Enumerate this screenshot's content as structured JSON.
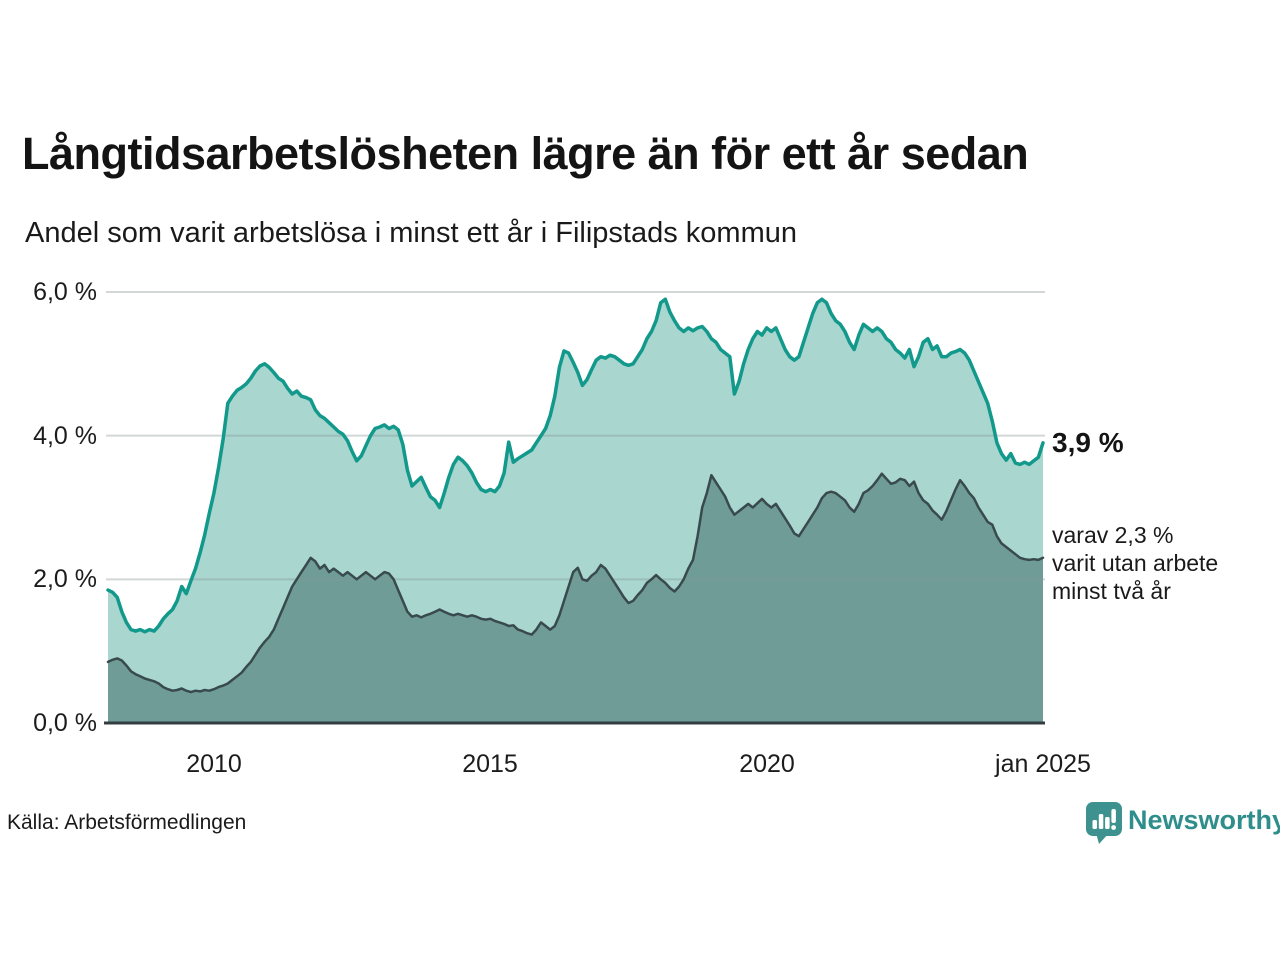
{
  "header": {
    "title": "Långtidsarbetslösheten lägre än för ett år sedan",
    "subtitle": "Andel som varit arbetslösa i minst ett år i Filipstads kommun"
  },
  "annotations": {
    "latest_total": "3,9 %",
    "secondary_line1": "varav 2,3 %",
    "secondary_line2": "varit utan arbete",
    "secondary_line3": "minst två år"
  },
  "footer": {
    "source": "Källa: Arbetsförmedlingen",
    "brand": "Newsworthy"
  },
  "colors": {
    "background": "#ffffff",
    "accent_teal": "#12998b",
    "area_light_fill": "#a9d6cf",
    "secondary_line": "#394a4e",
    "area_dark_fill": "#6f9c97",
    "gridline": "#8a9898",
    "baseline": "#333d40",
    "text": "#141414",
    "brand_teal": "#2f8e8c"
  },
  "chart_data": {
    "type": "area",
    "title": "Långtidsarbetslösheten lägre än för ett år sedan",
    "subtitle": "Andel som varit arbetslösa i minst ett år i Filipstads kommun",
    "source": "Arbetsförmedlingen",
    "x_start": "2008-02",
    "x_end": "2025-01",
    "x_frequency": "monthly",
    "x_tick_labels": [
      "2010",
      "2015",
      "2020",
      "jan 2025"
    ],
    "x_tick_indices": [
      23,
      83,
      143,
      203
    ],
    "y_tick_labels": [
      "0,0 %",
      "2,0 %",
      "4,0 %",
      "6,0 %"
    ],
    "ylim": [
      0,
      6
    ],
    "grid": "horizontal",
    "legend": "none",
    "latest_values": {
      "total": 3.9,
      "two_years_plus": 2.3
    },
    "series": [
      {
        "name": "Arbetslösa minst ett år",
        "color": "#12998b",
        "fill": "#a9d6cf",
        "stroke_width": 3.5,
        "values": [
          1.85,
          1.82,
          1.75,
          1.55,
          1.4,
          1.3,
          1.28,
          1.3,
          1.27,
          1.3,
          1.28,
          1.35,
          1.45,
          1.52,
          1.58,
          1.7,
          1.9,
          1.8,
          1.98,
          2.15,
          2.37,
          2.62,
          2.92,
          3.2,
          3.55,
          3.95,
          4.45,
          4.55,
          4.63,
          4.67,
          4.72,
          4.8,
          4.9,
          4.97,
          5.0,
          4.95,
          4.88,
          4.8,
          4.76,
          4.66,
          4.58,
          4.62,
          4.55,
          4.53,
          4.5,
          4.36,
          4.28,
          4.24,
          4.18,
          4.12,
          4.06,
          4.02,
          3.93,
          3.78,
          3.65,
          3.72,
          3.86,
          4.0,
          4.1,
          4.12,
          4.15,
          4.1,
          4.13,
          4.08,
          3.88,
          3.52,
          3.3,
          3.36,
          3.42,
          3.28,
          3.15,
          3.1,
          3.0,
          3.2,
          3.42,
          3.6,
          3.7,
          3.65,
          3.58,
          3.48,
          3.35,
          3.25,
          3.22,
          3.25,
          3.22,
          3.3,
          3.48,
          3.91,
          3.63,
          3.68,
          3.72,
          3.76,
          3.8,
          3.9,
          4.0,
          4.1,
          4.28,
          4.55,
          4.95,
          5.18,
          5.15,
          5.02,
          4.88,
          4.7,
          4.78,
          4.92,
          5.05,
          5.1,
          5.08,
          5.12,
          5.1,
          5.05,
          5.0,
          4.98,
          5.0,
          5.1,
          5.2,
          5.35,
          5.45,
          5.6,
          5.85,
          5.9,
          5.72,
          5.6,
          5.5,
          5.45,
          5.5,
          5.46,
          5.5,
          5.52,
          5.45,
          5.35,
          5.3,
          5.2,
          5.15,
          5.1,
          4.58,
          4.75,
          5.0,
          5.2,
          5.35,
          5.45,
          5.4,
          5.5,
          5.45,
          5.5,
          5.35,
          5.2,
          5.1,
          5.05,
          5.1,
          5.3,
          5.5,
          5.7,
          5.85,
          5.9,
          5.85,
          5.7,
          5.6,
          5.55,
          5.45,
          5.3,
          5.2,
          5.4,
          5.55,
          5.5,
          5.45,
          5.5,
          5.45,
          5.35,
          5.3,
          5.2,
          5.15,
          5.08,
          5.2,
          4.96,
          5.1,
          5.3,
          5.35,
          5.2,
          5.25,
          5.1,
          5.1,
          5.15,
          5.17,
          5.2,
          5.15,
          5.05,
          4.9,
          4.75,
          4.6,
          4.45,
          4.2,
          3.9,
          3.75,
          3.66,
          3.75,
          3.62,
          3.6,
          3.63,
          3.6,
          3.65,
          3.7,
          3.9
        ]
      },
      {
        "name": "varav utan arbete minst två år",
        "color": "#394a4e",
        "fill": "#6f9c97",
        "stroke_width": 2.5,
        "values": [
          0.85,
          0.88,
          0.9,
          0.87,
          0.8,
          0.72,
          0.68,
          0.65,
          0.62,
          0.6,
          0.58,
          0.55,
          0.5,
          0.47,
          0.45,
          0.46,
          0.48,
          0.45,
          0.43,
          0.45,
          0.44,
          0.46,
          0.45,
          0.47,
          0.5,
          0.52,
          0.55,
          0.6,
          0.65,
          0.7,
          0.78,
          0.85,
          0.95,
          1.05,
          1.13,
          1.2,
          1.3,
          1.45,
          1.6,
          1.75,
          1.9,
          2.0,
          2.1,
          2.2,
          2.3,
          2.25,
          2.15,
          2.2,
          2.1,
          2.15,
          2.1,
          2.05,
          2.1,
          2.05,
          2.0,
          2.05,
          2.1,
          2.05,
          2.0,
          2.05,
          2.1,
          2.08,
          2.0,
          1.85,
          1.7,
          1.55,
          1.48,
          1.5,
          1.47,
          1.5,
          1.52,
          1.55,
          1.58,
          1.55,
          1.52,
          1.5,
          1.52,
          1.5,
          1.48,
          1.5,
          1.48,
          1.45,
          1.44,
          1.45,
          1.42,
          1.4,
          1.38,
          1.35,
          1.36,
          1.3,
          1.28,
          1.25,
          1.23,
          1.3,
          1.4,
          1.35,
          1.3,
          1.35,
          1.5,
          1.7,
          1.9,
          2.1,
          2.16,
          2.0,
          1.98,
          2.05,
          2.1,
          2.2,
          2.15,
          2.05,
          1.95,
          1.85,
          1.75,
          1.67,
          1.7,
          1.78,
          1.85,
          1.95,
          2.0,
          2.06,
          2.0,
          1.95,
          1.88,
          1.83,
          1.9,
          2.0,
          2.15,
          2.27,
          2.6,
          3.0,
          3.2,
          3.45,
          3.35,
          3.25,
          3.15,
          3.0,
          2.9,
          2.95,
          3.0,
          3.05,
          3.0,
          3.06,
          3.12,
          3.05,
          3.0,
          3.05,
          2.95,
          2.85,
          2.75,
          2.64,
          2.6,
          2.7,
          2.8,
          2.9,
          3.0,
          3.13,
          3.2,
          3.22,
          3.2,
          3.15,
          3.1,
          3.0,
          2.94,
          3.05,
          3.2,
          3.24,
          3.3,
          3.38,
          3.47,
          3.4,
          3.33,
          3.35,
          3.4,
          3.38,
          3.3,
          3.36,
          3.2,
          3.1,
          3.05,
          2.96,
          2.9,
          2.83,
          2.95,
          3.1,
          3.25,
          3.38,
          3.3,
          3.2,
          3.13,
          3.0,
          2.9,
          2.8,
          2.76,
          2.6,
          2.5,
          2.45,
          2.4,
          2.35,
          2.3,
          2.28,
          2.27,
          2.28,
          2.27,
          2.3
        ]
      }
    ]
  }
}
